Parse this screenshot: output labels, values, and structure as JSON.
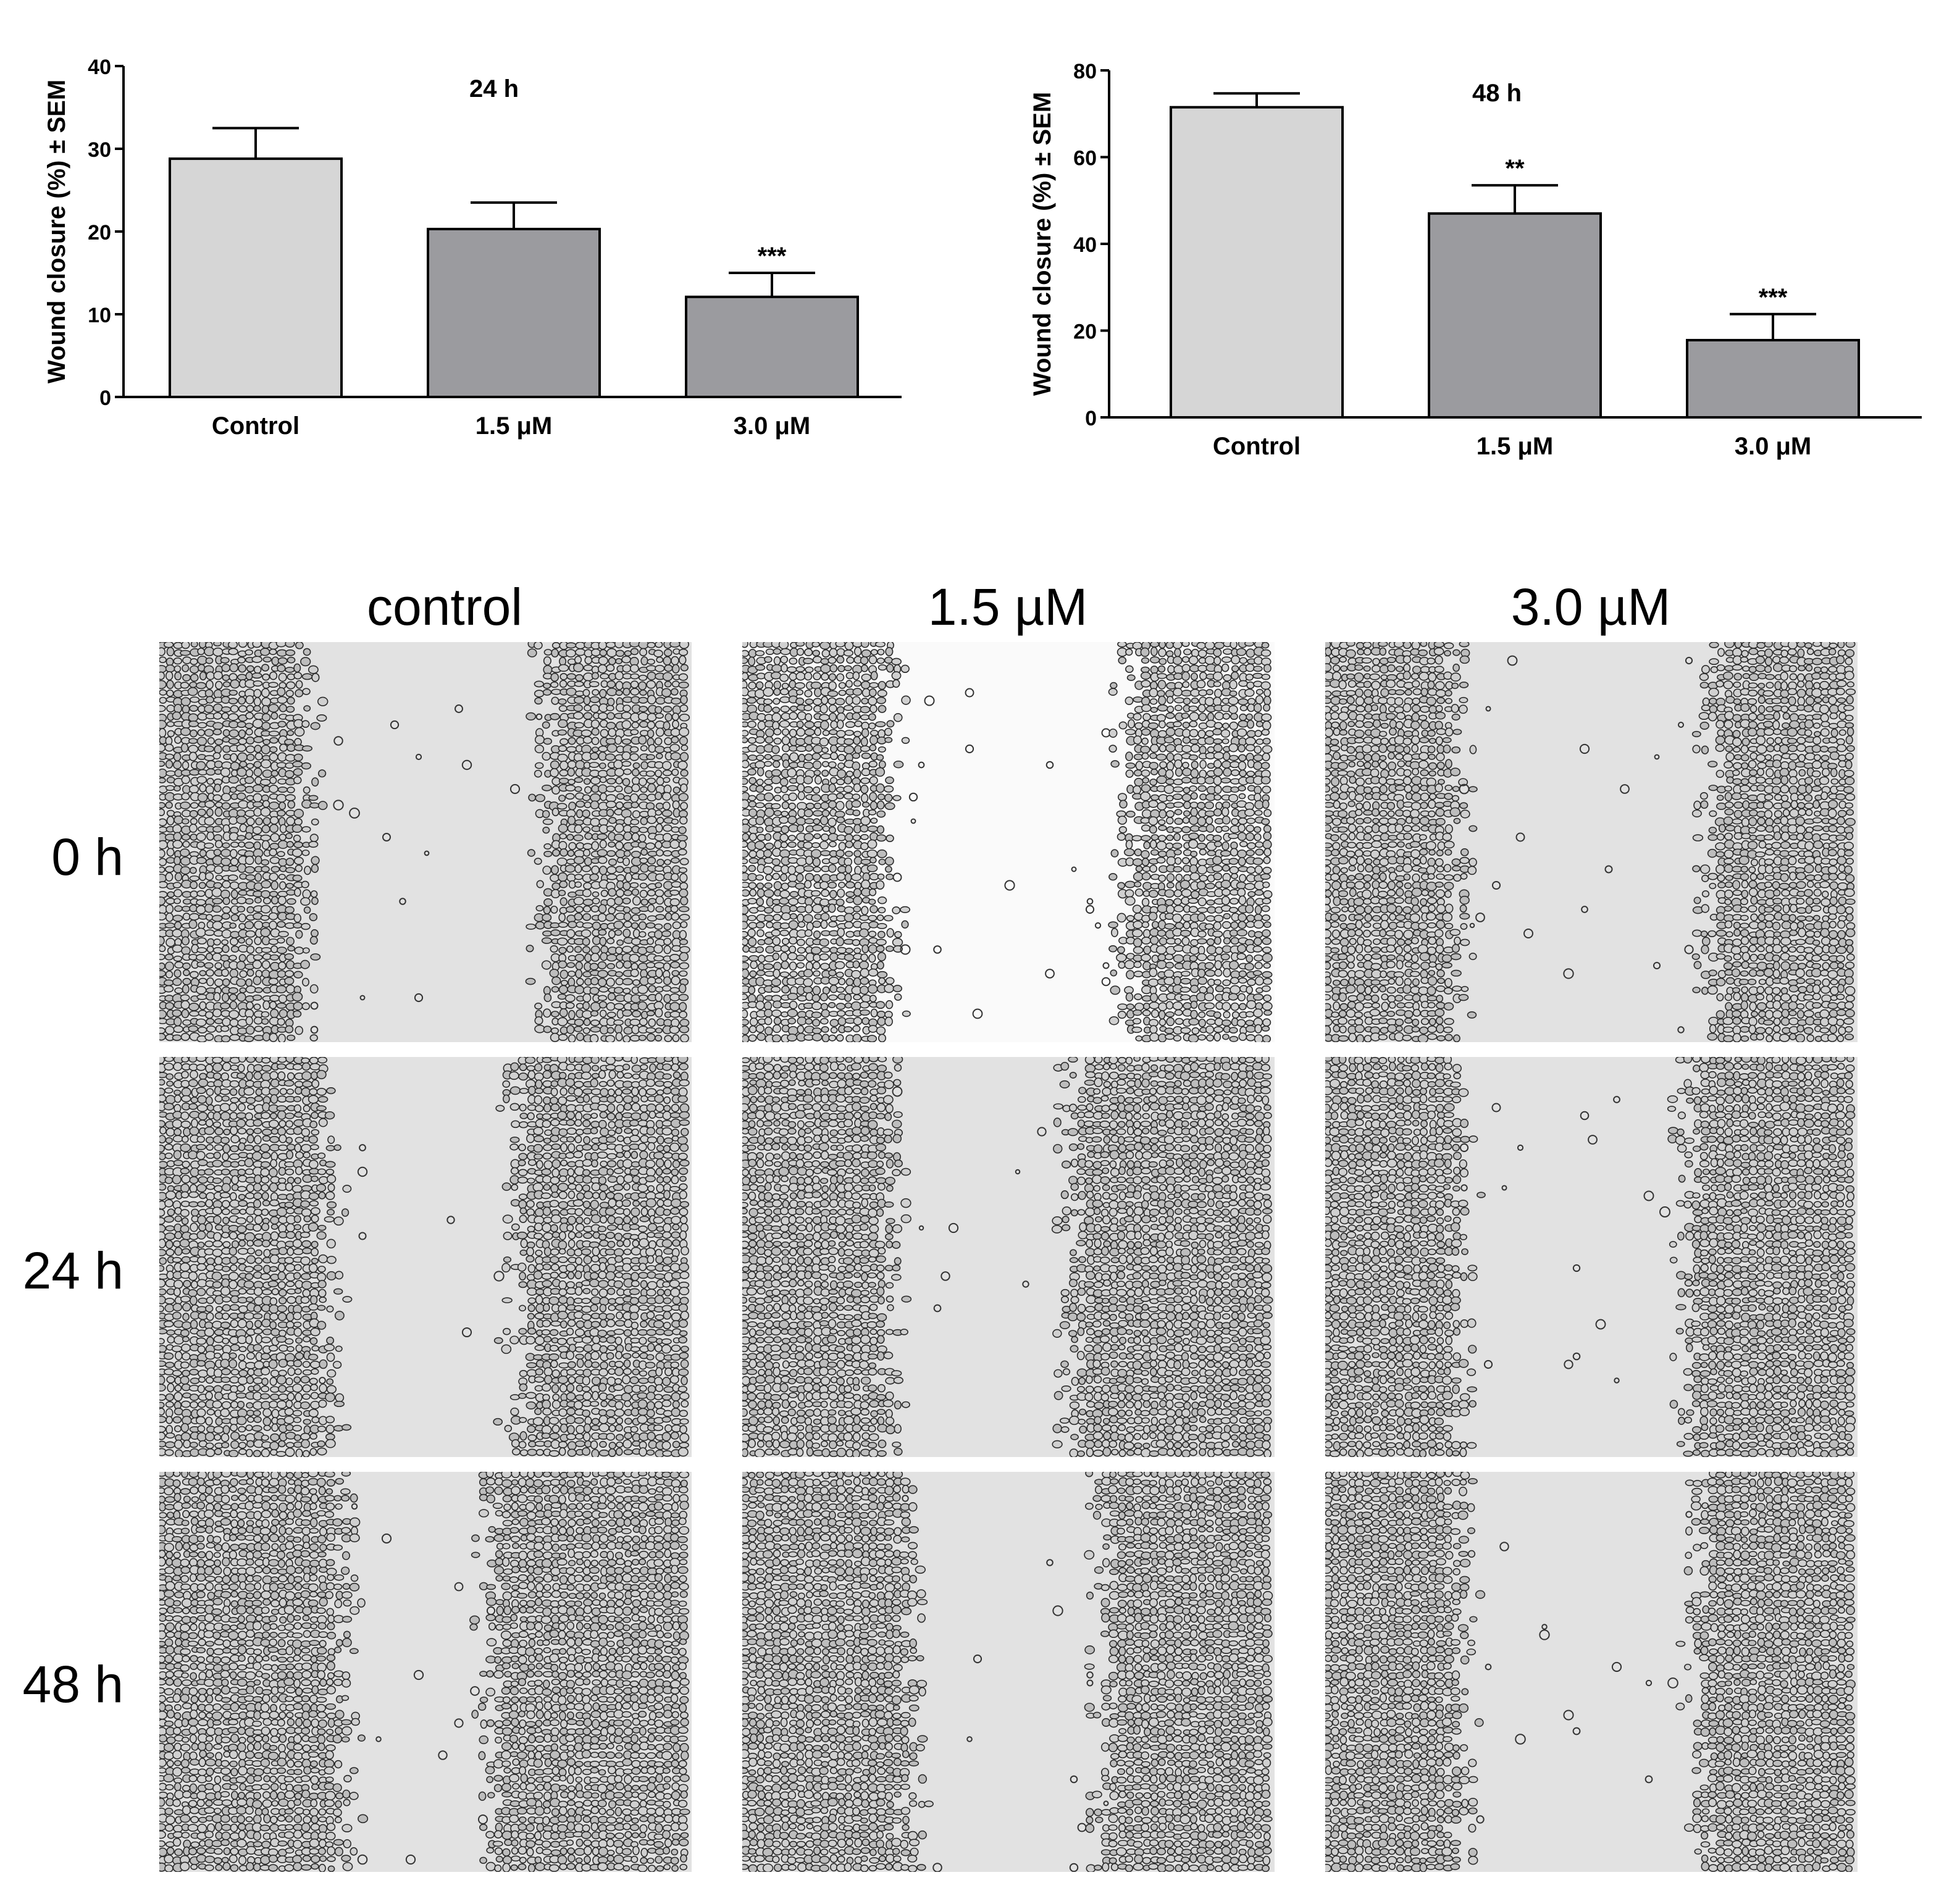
{
  "chart_data": [
    {
      "type": "bar",
      "title": "24 h",
      "ylabel": "Wound closure (%) ± SEM",
      "xlabel": "",
      "categories": [
        "Control",
        "1.5 μM",
        "3.0 μM"
      ],
      "values": [
        28.8,
        20.3,
        12.1
      ],
      "errors": [
        3.7,
        3.2,
        2.9
      ],
      "significance": [
        "",
        "",
        "***"
      ],
      "ylim": [
        0,
        40
      ],
      "yticks": [
        0,
        10,
        20,
        30,
        40
      ],
      "bar_colors": [
        "#d6d6d6",
        "#9b9b9f",
        "#9b9b9f"
      ],
      "grid": false,
      "legend": "none"
    },
    {
      "type": "bar",
      "title": "48 h",
      "ylabel": "Wound closure (%) ± SEM",
      "xlabel": "",
      "categories": [
        "Control",
        "1.5 μM",
        "3.0 μM"
      ],
      "values": [
        71.5,
        47,
        17.8
      ],
      "errors": [
        3.2,
        6.5,
        6
      ],
      "significance": [
        "",
        "**",
        "***"
      ],
      "ylim": [
        0,
        80
      ],
      "yticks": [
        0,
        20,
        40,
        60,
        80
      ],
      "bar_colors": [
        "#d6d6d6",
        "#9b9b9f",
        "#9b9b9f"
      ],
      "grid": false,
      "legend": "none"
    }
  ],
  "micrographs": {
    "columns": [
      "control",
      "1.5 µM",
      "3.0 µM"
    ],
    "rows": [
      "0 h",
      "24 h",
      "48 h"
    ]
  }
}
